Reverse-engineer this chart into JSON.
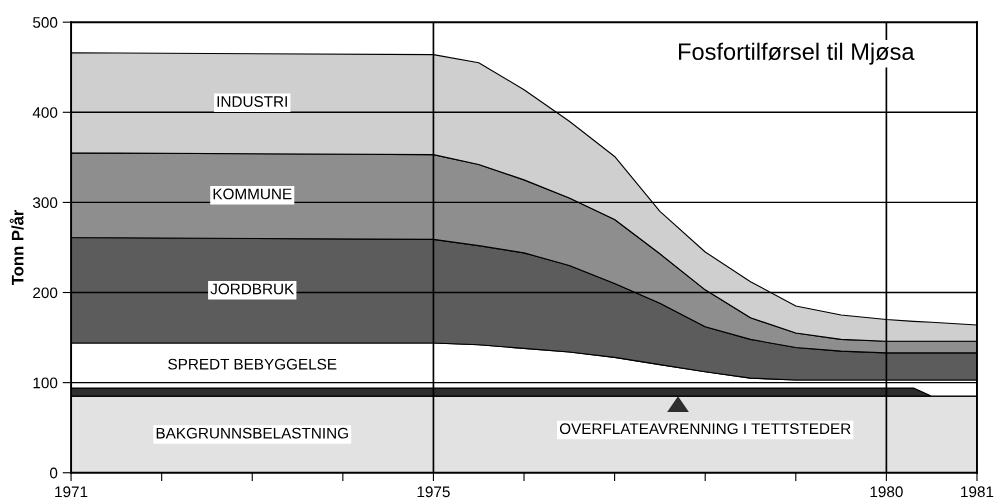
{
  "chart_data": {
    "type": "area",
    "stacked": true,
    "title": "Fosfortilførsel til Mjøsa",
    "ylabel": "Tonn P/år",
    "x": [
      1971,
      1975,
      1975.5,
      1976,
      1976.5,
      1977,
      1977.5,
      1978,
      1978.5,
      1979,
      1979.5,
      1980,
      1980.3,
      1980.5,
      1981
    ],
    "series": [
      {
        "name": "BAKGRUNNSBELASTNING",
        "color": "#e2e2e2",
        "values": [
          85,
          85,
          85,
          85,
          85,
          85,
          85,
          85,
          85,
          85,
          85,
          85,
          85,
          85,
          85
        ]
      },
      {
        "name": "OVERFLATEAVRENNING I TETTSTEDER",
        "color": "#2e2e2e",
        "values": [
          9,
          9,
          9,
          9,
          9,
          9,
          9,
          9,
          9,
          9,
          9,
          9,
          9,
          0,
          0
        ]
      },
      {
        "name": "SPREDT BEBYGGELSE",
        "color": "#ffffff",
        "values": [
          50,
          50,
          48,
          44,
          40,
          34,
          26,
          18,
          11,
          9,
          9,
          9,
          9,
          18,
          18
        ]
      },
      {
        "name": "JORDBRUK",
        "color": "#5c5c5c",
        "values": [
          117,
          115,
          110,
          106,
          96,
          82,
          68,
          50,
          43,
          36,
          32,
          30,
          30,
          30,
          30
        ]
      },
      {
        "name": "KOMMUNE",
        "color": "#8e8e8e",
        "values": [
          94,
          94,
          90,
          81,
          75,
          71,
          55,
          41,
          24,
          16,
          13,
          13,
          13,
          13,
          13
        ]
      },
      {
        "name": "INDUSTRI",
        "color": "#cfcfcf",
        "values": [
          111,
          111,
          113,
          100,
          85,
          70,
          47,
          42,
          40,
          30,
          27,
          24,
          22,
          21,
          18
        ]
      }
    ],
    "xlim": [
      1971,
      1981
    ],
    "ylim": [
      0,
      500
    ],
    "xticks": [
      1971,
      {
        "value": 1972,
        "label": null
      },
      {
        "value": 1973,
        "label": null
      },
      {
        "value": 1974,
        "label": null
      },
      1975,
      {
        "value": 1976,
        "label": null
      },
      {
        "value": 1977,
        "label": null
      },
      {
        "value": 1978,
        "label": null
      },
      {
        "value": 1979,
        "label": null
      },
      1980,
      1981
    ],
    "yticks": [
      0,
      100,
      200,
      300,
      400,
      500
    ],
    "grid": "y",
    "ref_lines": [
      {
        "axis": "x",
        "value": 1975,
        "color": "#000000"
      },
      {
        "axis": "x",
        "value": 1980,
        "color": "#000000"
      }
    ]
  }
}
